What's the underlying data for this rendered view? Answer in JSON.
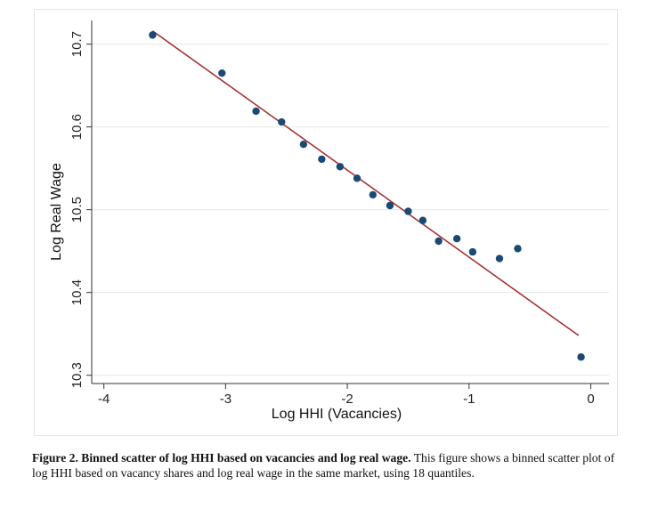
{
  "chart_data": {
    "type": "scatter",
    "title": "",
    "xlabel": "Log HHI (Vacancies)",
    "ylabel": "Log Real Wage",
    "xlim": [
      -4.1,
      0.15
    ],
    "ylim": [
      10.29,
      10.72
    ],
    "xticks": [
      -4,
      -3,
      -2,
      -1,
      0
    ],
    "xtick_labels": [
      "-4",
      "-3",
      "-2",
      "-1",
      "0"
    ],
    "yticks": [
      10.3,
      10.4,
      10.5,
      10.6,
      10.7
    ],
    "ytick_labels": [
      "10.3",
      "10.4",
      "10.5",
      "10.6",
      "10.7"
    ],
    "grid": true,
    "legend": "none",
    "series": [
      {
        "type": "scatter",
        "color": "#1a4a73",
        "x": [
          -3.6,
          -3.03,
          -2.75,
          -2.54,
          -2.36,
          -2.21,
          -2.06,
          -1.92,
          -1.79,
          -1.65,
          -1.5,
          -1.38,
          -1.25,
          -1.1,
          -0.97,
          -0.75,
          -0.6,
          -0.08
        ],
        "y": [
          10.711,
          10.665,
          10.619,
          10.606,
          10.579,
          10.561,
          10.552,
          10.538,
          10.518,
          10.505,
          10.498,
          10.487,
          10.462,
          10.465,
          10.449,
          10.441,
          10.453,
          10.322
        ]
      },
      {
        "type": "line",
        "color": "#a52a2a",
        "x": [
          -3.6,
          -0.1
        ],
        "y": [
          10.716,
          10.348
        ]
      }
    ]
  },
  "caption": {
    "title": "Figure 2. Binned scatter of log HHI based on vacancies and log real wage.",
    "body": " This figure shows a binned scatter plot of log HHI based on vacancy shares and log real wage in the same market, using 18 quantiles."
  }
}
